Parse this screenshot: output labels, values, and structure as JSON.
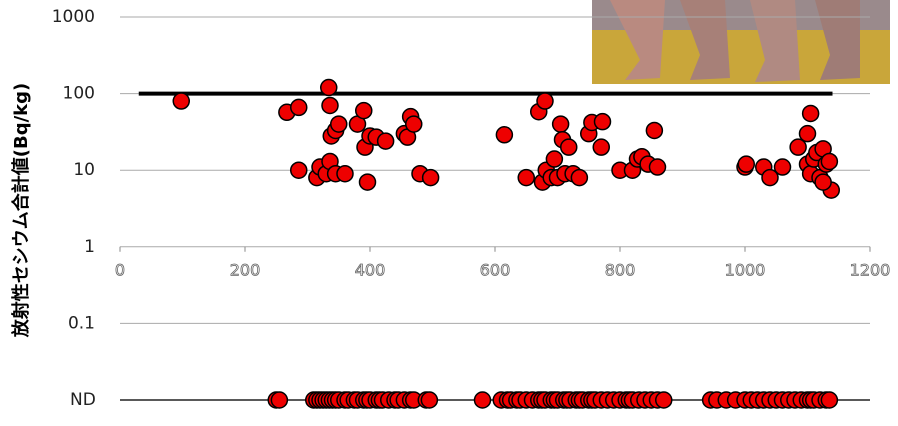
{
  "chart_data": {
    "type": "scatter",
    "y_label": "放射性セシウム合計値(Bq/kg)",
    "log_y": true,
    "grid": true,
    "marker_color": "#ee0000",
    "xlim": [
      0,
      1200
    ],
    "xticks": [
      0,
      200,
      400,
      600,
      800,
      1000,
      1200
    ],
    "ylim": [
      0.01,
      1000
    ],
    "yticks": [
      1000,
      100,
      10,
      1,
      0.1,
      {
        "value": 0.01,
        "label": "ND"
      }
    ],
    "reference_line": {
      "y": 100,
      "x": [
        30,
        1140
      ]
    },
    "series": [
      {
        "name": null,
        "x": [
          98,
          267,
          286,
          286,
          315,
          320,
          330,
          336,
          334,
          336,
          338,
          345,
          350,
          345,
          360,
          380,
          390,
          392,
          396,
          400,
          410,
          425,
          455,
          460,
          465,
          470,
          480,
          497,
          615,
          650,
          670,
          680,
          676,
          682,
          690,
          695,
          700,
          705,
          708,
          712,
          718,
          725,
          735,
          750,
          755,
          770,
          772,
          800,
          820,
          828,
          835,
          845,
          855,
          860,
          1000,
          1002,
          1030,
          1040,
          1060,
          1085,
          1100,
          1105,
          1100,
          1105,
          1110,
          1115,
          1120,
          1125,
          1130,
          1135,
          1138,
          1125
        ],
        "values": [
          80,
          57,
          66,
          10,
          8,
          11,
          9,
          13,
          120,
          70,
          28,
          33,
          40,
          9,
          9,
          40,
          60,
          20,
          7,
          28,
          27,
          24,
          30,
          27,
          50,
          40,
          9,
          8,
          29,
          8,
          58,
          80,
          7,
          10,
          8,
          14,
          8,
          40,
          25,
          9,
          20,
          9,
          8,
          30,
          42,
          20,
          43,
          10,
          10,
          14,
          15,
          12,
          33,
          11,
          11,
          12,
          11,
          8,
          11,
          20,
          30,
          55,
          12,
          9,
          14,
          17,
          8,
          19,
          12,
          13,
          5.5,
          7
        ]
      }
    ],
    "nd_x": [
      250,
      255,
      310,
      315,
      320,
      325,
      330,
      335,
      340,
      345,
      350,
      360,
      365,
      375,
      380,
      390,
      395,
      400,
      410,
      415,
      420,
      430,
      440,
      445,
      455,
      465,
      470,
      490,
      495,
      580,
      610,
      620,
      625,
      635,
      640,
      650,
      660,
      670,
      675,
      680,
      690,
      695,
      700,
      710,
      715,
      720,
      730,
      735,
      740,
      750,
      755,
      760,
      770,
      780,
      790,
      800,
      810,
      815,
      820,
      830,
      840,
      850,
      860,
      870,
      945,
      955,
      970,
      985,
      1000,
      1010,
      1020,
      1030,
      1040,
      1050,
      1060,
      1070,
      1080,
      1090,
      1100,
      1105,
      1110,
      1120,
      1130,
      1135
    ]
  }
}
